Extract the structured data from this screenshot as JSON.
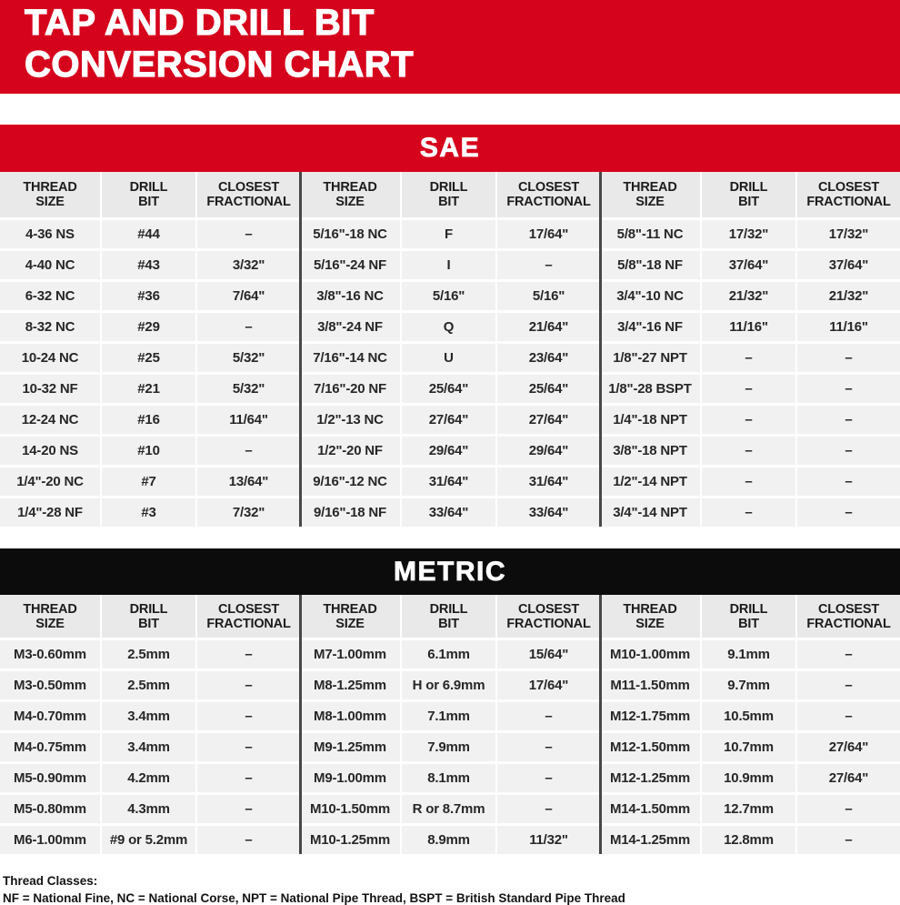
{
  "header": {
    "title_line1": "TAP AND DRILL BIT",
    "title_line2": "CONVERSION CHART"
  },
  "colors": {
    "brand_red": "#d6031c",
    "banner_black": "#0c0c0c",
    "header_cell_bg": "#e9e9e9",
    "row_bg": "#f1f1f1",
    "group_divider": "#474747"
  },
  "chart_data": [
    {
      "type": "table",
      "title": "SAE",
      "column_groups": 3,
      "columns": [
        "THREAD SIZE",
        "DRILL BIT",
        "CLOSEST FRACTIONAL"
      ],
      "rows": [
        [
          "4-36 NS",
          "#44",
          "–",
          "5/16\"-18 NC",
          "F",
          "17/64\"",
          "5/8\"-11 NC",
          "17/32\"",
          "17/32\""
        ],
        [
          "4-40 NC",
          "#43",
          "3/32\"",
          "5/16\"-24 NF",
          "I",
          "–",
          "5/8\"-18 NF",
          "37/64\"",
          "37/64\""
        ],
        [
          "6-32 NC",
          "#36",
          "7/64\"",
          "3/8\"-16 NC",
          "5/16\"",
          "5/16\"",
          "3/4\"-10 NC",
          "21/32\"",
          "21/32\""
        ],
        [
          "8-32 NC",
          "#29",
          "–",
          "3/8\"-24 NF",
          "Q",
          "21/64\"",
          "3/4\"-16 NF",
          "11/16\"",
          "11/16\""
        ],
        [
          "10-24 NC",
          "#25",
          "5/32\"",
          "7/16\"-14 NC",
          "U",
          "23/64\"",
          "1/8\"-27 NPT",
          "–",
          "–"
        ],
        [
          "10-32 NF",
          "#21",
          "5/32\"",
          "7/16\"-20 NF",
          "25/64\"",
          "25/64\"",
          "1/8\"-28 BSPT",
          "–",
          "–"
        ],
        [
          "12-24 NC",
          "#16",
          "11/64\"",
          "1/2\"-13 NC",
          "27/64\"",
          "27/64\"",
          "1/4\"-18 NPT",
          "–",
          "–"
        ],
        [
          "14-20 NS",
          "#10",
          "–",
          "1/2\"-20 NF",
          "29/64\"",
          "29/64\"",
          "3/8\"-18 NPT",
          "–",
          "–"
        ],
        [
          "1/4\"-20 NC",
          "#7",
          "13/64\"",
          "9/16\"-12 NC",
          "31/64\"",
          "31/64\"",
          "1/2\"-14 NPT",
          "–",
          "–"
        ],
        [
          "1/4\"-28 NF",
          "#3",
          "7/32\"",
          "9/16\"-18 NF",
          "33/64\"",
          "33/64\"",
          "3/4\"-14 NPT",
          "–",
          "–"
        ]
      ]
    },
    {
      "type": "table",
      "title": "METRIC",
      "column_groups": 3,
      "columns": [
        "THREAD SIZE",
        "DRILL BIT",
        "CLOSEST FRACTIONAL"
      ],
      "rows": [
        [
          "M3-0.60mm",
          "2.5mm",
          "–",
          "M7-1.00mm",
          "6.1mm",
          "15/64\"",
          "M10-1.00mm",
          "9.1mm",
          "–"
        ],
        [
          "M3-0.50mm",
          "2.5mm",
          "–",
          "M8-1.25mm",
          "H or 6.9mm",
          "17/64\"",
          "M11-1.50mm",
          "9.7mm",
          "–"
        ],
        [
          "M4-0.70mm",
          "3.4mm",
          "–",
          "M8-1.00mm",
          "7.1mm",
          "–",
          "M12-1.75mm",
          "10.5mm",
          "–"
        ],
        [
          "M4-0.75mm",
          "3.4mm",
          "–",
          "M9-1.25mm",
          "7.9mm",
          "–",
          "M12-1.50mm",
          "10.7mm",
          "27/64\""
        ],
        [
          "M5-0.90mm",
          "4.2mm",
          "–",
          "M9-1.00mm",
          "8.1mm",
          "–",
          "M12-1.25mm",
          "10.9mm",
          "27/64\""
        ],
        [
          "M5-0.80mm",
          "4.3mm",
          "–",
          "M10-1.50mm",
          "R or 8.7mm",
          "–",
          "M14-1.50mm",
          "12.7mm",
          "–"
        ],
        [
          "M6-1.00mm",
          "#9 or 5.2mm",
          "–",
          "M10-1.25mm",
          "8.9mm",
          "11/32\"",
          "M14-1.25mm",
          "12.8mm",
          "–"
        ]
      ]
    }
  ],
  "footer": {
    "heading": "Thread Classes:",
    "text": "NF = National Fine, NC = National Corse, NPT = National Pipe Thread, BSPT = British Standard Pipe Thread"
  }
}
